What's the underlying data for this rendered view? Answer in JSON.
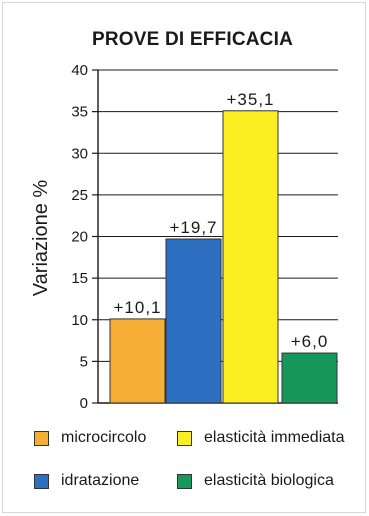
{
  "chart_data": {
    "type": "bar",
    "title": "PROVE DI EFFICACIA",
    "ylabel": "Variazione %",
    "xlabel": "",
    "ylim": [
      0,
      40
    ],
    "yticks": [
      0,
      5,
      10,
      15,
      20,
      25,
      30,
      35,
      40
    ],
    "grid": true,
    "legend_position": "bottom",
    "categories": [
      "microcircolo",
      "idratazione",
      "elasticità immediata",
      "elasticità biologica"
    ],
    "values": [
      10.1,
      19.7,
      35.1,
      6.0
    ],
    "data_labels": [
      "+10,1",
      "+19,7",
      "+35,1",
      "+6,0"
    ],
    "colors": [
      "#f6ad35",
      "#2d6fc1",
      "#fbee23",
      "#16985a"
    ]
  },
  "legend": {
    "microcircolo": "microcircolo",
    "idratazione": "idratazione",
    "elasticita_immediata": "elasticità immediata",
    "elasticita_biologica": "elasticità biologica"
  }
}
